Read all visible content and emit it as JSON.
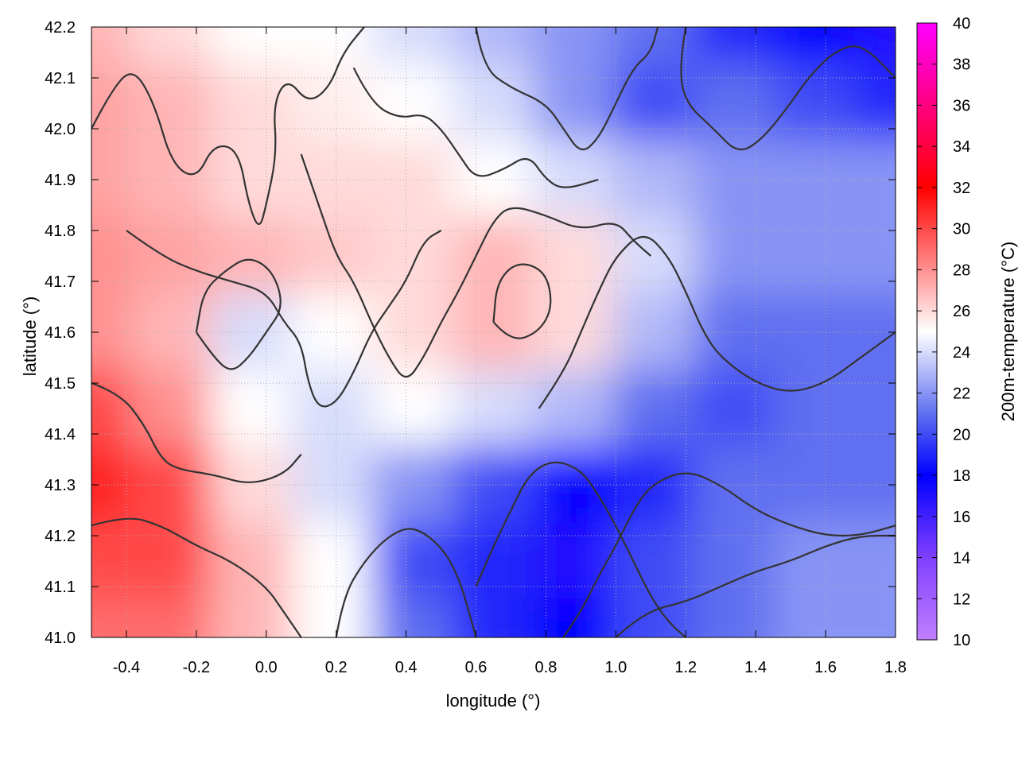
{
  "chart_data": {
    "type": "heatmap",
    "title": "",
    "xlabel": "longitude (°)",
    "ylabel": "latitude (°)",
    "colorbar_label": "200m-temperature (°C)",
    "xlim": [
      -0.5,
      1.8
    ],
    "ylim": [
      41.0,
      42.2
    ],
    "x_ticks": [
      "-0.4",
      "-0.2",
      "0.0",
      "0.2",
      "0.4",
      "0.6",
      "0.8",
      "1.0",
      "1.2",
      "1.4",
      "1.6",
      "1.8"
    ],
    "y_ticks": [
      "41.0",
      "41.1",
      "41.2",
      "41.3",
      "41.4",
      "41.5",
      "41.6",
      "41.7",
      "41.8",
      "41.9",
      "42.0",
      "42.1",
      "42.2"
    ],
    "colorbar_ticks": [
      "10",
      "12",
      "14",
      "16",
      "18",
      "20",
      "22",
      "24",
      "26",
      "28",
      "30",
      "32",
      "34",
      "36",
      "38",
      "40"
    ],
    "colorbar_range": [
      10,
      40
    ],
    "grid": true,
    "colormap": [
      {
        "value": 10,
        "color": "#c080ff"
      },
      {
        "value": 14,
        "color": "#8040ff"
      },
      {
        "value": 18,
        "color": "#0000ff"
      },
      {
        "value": 21,
        "color": "#6070f0"
      },
      {
        "value": 25,
        "color": "#ffffff"
      },
      {
        "value": 28,
        "color": "#ff9090"
      },
      {
        "value": 32,
        "color": "#ff0000"
      },
      {
        "value": 36,
        "color": "#ff0080"
      },
      {
        "value": 40,
        "color": "#ff00ff"
      }
    ],
    "temperature_grid": {
      "lon": [
        -0.5,
        -0.27,
        -0.04,
        0.19,
        0.42,
        0.65,
        0.88,
        1.11,
        1.34,
        1.57,
        1.8
      ],
      "lat": [
        42.2,
        42.05,
        41.9,
        41.75,
        41.6,
        41.45,
        41.3,
        41.15,
        41.0
      ],
      "values": [
        [
          27,
          26,
          25,
          25,
          24,
          23,
          22,
          21,
          19,
          18,
          17
        ],
        [
          27.5,
          27,
          26,
          25.5,
          25,
          24,
          22,
          20,
          21,
          20,
          19
        ],
        [
          27.5,
          27,
          26,
          26,
          26,
          25,
          24,
          23,
          22,
          22,
          22
        ],
        [
          28,
          27.5,
          27,
          26.5,
          26,
          27,
          26,
          24,
          22,
          22,
          22
        ],
        [
          28,
          27,
          24,
          25,
          26,
          27,
          26,
          23,
          21,
          21,
          21
        ],
        [
          30,
          28,
          25,
          24,
          25,
          24,
          23,
          21,
          20,
          21,
          21
        ],
        [
          31,
          30,
          26,
          24,
          22,
          20,
          18,
          19,
          21,
          21,
          21
        ],
        [
          30,
          30,
          27,
          25,
          20,
          19,
          17,
          20,
          21,
          22,
          22
        ],
        [
          29,
          29,
          27,
          25,
          21,
          19,
          18,
          20,
          21,
          22,
          22
        ]
      ]
    },
    "contour_lines": [
      [
        [
          -0.5,
          42.0
        ],
        [
          -0.44,
          42.08
        ],
        [
          -0.38,
          42.12
        ],
        [
          -0.32,
          42.05
        ],
        [
          -0.27,
          41.93
        ],
        [
          -0.2,
          41.9
        ],
        [
          -0.15,
          41.97
        ],
        [
          -0.08,
          41.96
        ],
        [
          -0.05,
          41.85
        ],
        [
          -0.02,
          41.8
        ],
        [
          0.0,
          41.85
        ],
        [
          0.03,
          41.95
        ],
        [
          0.02,
          42.05
        ],
        [
          0.06,
          42.1
        ],
        [
          0.12,
          42.05
        ],
        [
          0.18,
          42.08
        ],
        [
          0.22,
          42.15
        ],
        [
          0.28,
          42.2
        ]
      ],
      [
        [
          -0.4,
          41.8
        ],
        [
          -0.3,
          41.75
        ],
        [
          -0.2,
          41.72
        ],
        [
          -0.1,
          41.7
        ],
        [
          0.0,
          41.68
        ],
        [
          0.05,
          41.62
        ],
        [
          0.1,
          41.58
        ],
        [
          0.12,
          41.5
        ],
        [
          0.15,
          41.45
        ],
        [
          0.2,
          41.46
        ],
        [
          0.25,
          41.52
        ],
        [
          0.3,
          41.6
        ],
        [
          0.35,
          41.65
        ],
        [
          0.4,
          41.7
        ],
        [
          0.45,
          41.78
        ],
        [
          0.5,
          41.8
        ]
      ],
      [
        [
          0.1,
          41.95
        ],
        [
          0.15,
          41.85
        ],
        [
          0.2,
          41.75
        ],
        [
          0.25,
          41.7
        ],
        [
          0.3,
          41.62
        ],
        [
          0.35,
          41.55
        ],
        [
          0.4,
          41.5
        ],
        [
          0.45,
          41.55
        ],
        [
          0.5,
          41.62
        ],
        [
          0.55,
          41.68
        ],
        [
          0.6,
          41.75
        ],
        [
          0.65,
          41.82
        ],
        [
          0.7,
          41.85
        ],
        [
          0.8,
          41.83
        ],
        [
          0.9,
          41.8
        ],
        [
          1.0,
          41.82
        ],
        [
          1.05,
          41.78
        ],
        [
          1.1,
          41.75
        ]
      ],
      [
        [
          -0.5,
          41.5
        ],
        [
          -0.42,
          41.48
        ],
        [
          -0.35,
          41.42
        ],
        [
          -0.3,
          41.35
        ],
        [
          -0.25,
          41.33
        ],
        [
          -0.15,
          41.32
        ],
        [
          -0.05,
          41.3
        ],
        [
          0.05,
          41.32
        ],
        [
          0.1,
          41.36
        ]
      ],
      [
        [
          -0.5,
          41.22
        ],
        [
          -0.4,
          41.24
        ],
        [
          -0.3,
          41.22
        ],
        [
          -0.2,
          41.18
        ],
        [
          -0.1,
          41.15
        ],
        [
          0.0,
          41.1
        ],
        [
          0.05,
          41.05
        ],
        [
          0.1,
          41.0
        ]
      ],
      [
        [
          0.2,
          41.0
        ],
        [
          0.22,
          41.08
        ],
        [
          0.28,
          41.15
        ],
        [
          0.35,
          41.2
        ],
        [
          0.42,
          41.22
        ],
        [
          0.5,
          41.18
        ],
        [
          0.55,
          41.12
        ],
        [
          0.58,
          41.05
        ],
        [
          0.6,
          41.0
        ]
      ],
      [
        [
          0.6,
          41.1
        ],
        [
          0.65,
          41.18
        ],
        [
          0.7,
          41.25
        ],
        [
          0.75,
          41.32
        ],
        [
          0.82,
          41.35
        ],
        [
          0.9,
          41.33
        ],
        [
          0.95,
          41.28
        ],
        [
          1.0,
          41.22
        ],
        [
          1.05,
          41.15
        ],
        [
          1.1,
          41.08
        ],
        [
          1.15,
          41.03
        ],
        [
          1.2,
          41.0
        ]
      ],
      [
        [
          0.78,
          41.45
        ],
        [
          0.85,
          41.52
        ],
        [
          0.9,
          41.6
        ],
        [
          0.95,
          41.68
        ],
        [
          1.0,
          41.75
        ],
        [
          1.08,
          41.8
        ],
        [
          1.15,
          41.75
        ],
        [
          1.2,
          41.68
        ],
        [
          1.25,
          41.6
        ],
        [
          1.3,
          41.55
        ],
        [
          1.4,
          41.5
        ],
        [
          1.5,
          41.48
        ],
        [
          1.6,
          41.5
        ],
        [
          1.7,
          41.55
        ],
        [
          1.8,
          41.6
        ]
      ],
      [
        [
          0.85,
          41.0
        ],
        [
          0.9,
          41.05
        ],
        [
          0.95,
          41.12
        ],
        [
          1.0,
          41.18
        ],
        [
          1.05,
          41.25
        ],
        [
          1.1,
          41.3
        ],
        [
          1.2,
          41.33
        ],
        [
          1.3,
          41.3
        ],
        [
          1.4,
          41.25
        ],
        [
          1.5,
          41.22
        ],
        [
          1.6,
          41.2
        ],
        [
          1.7,
          41.2
        ],
        [
          1.8,
          41.22
        ]
      ],
      [
        [
          1.0,
          41.0
        ],
        [
          1.08,
          41.05
        ],
        [
          1.2,
          41.07
        ],
        [
          1.3,
          41.1
        ],
        [
          1.4,
          41.13
        ],
        [
          1.5,
          41.15
        ],
        [
          1.6,
          41.18
        ],
        [
          1.7,
          41.2
        ],
        [
          1.8,
          41.2
        ]
      ],
      [
        [
          1.2,
          42.2
        ],
        [
          1.18,
          42.12
        ],
        [
          1.2,
          42.05
        ],
        [
          1.28,
          42.0
        ],
        [
          1.35,
          41.95
        ],
        [
          1.42,
          41.98
        ],
        [
          1.5,
          42.05
        ],
        [
          1.55,
          42.1
        ],
        [
          1.62,
          42.15
        ],
        [
          1.7,
          42.17
        ],
        [
          1.8,
          42.1
        ]
      ],
      [
        [
          0.6,
          42.2
        ],
        [
          0.62,
          42.12
        ],
        [
          0.7,
          42.08
        ],
        [
          0.8,
          42.05
        ],
        [
          0.85,
          42.0
        ],
        [
          0.9,
          41.95
        ],
        [
          0.95,
          41.98
        ],
        [
          1.0,
          42.05
        ],
        [
          1.05,
          42.12
        ],
        [
          1.1,
          42.15
        ],
        [
          1.12,
          42.2
        ]
      ],
      [
        [
          0.25,
          42.12
        ],
        [
          0.3,
          42.05
        ],
        [
          0.38,
          42.02
        ],
        [
          0.45,
          42.03
        ],
        [
          0.5,
          42.0
        ],
        [
          0.55,
          41.95
        ],
        [
          0.6,
          41.9
        ],
        [
          0.68,
          41.92
        ],
        [
          0.75,
          41.95
        ],
        [
          0.8,
          41.9
        ],
        [
          0.85,
          41.88
        ],
        [
          0.95,
          41.9
        ]
      ],
      [
        [
          -0.2,
          41.6
        ],
        [
          -0.15,
          41.55
        ],
        [
          -0.1,
          41.52
        ],
        [
          -0.05,
          41.55
        ],
        [
          0.0,
          41.6
        ],
        [
          0.05,
          41.65
        ],
        [
          0.02,
          41.72
        ],
        [
          -0.05,
          41.75
        ],
        [
          -0.12,
          41.72
        ],
        [
          -0.18,
          41.68
        ],
        [
          -0.2,
          41.6
        ]
      ],
      [
        [
          0.65,
          41.62
        ],
        [
          0.7,
          41.58
        ],
        [
          0.78,
          41.6
        ],
        [
          0.82,
          41.65
        ],
        [
          0.8,
          41.72
        ],
        [
          0.72,
          41.74
        ],
        [
          0.66,
          41.7
        ],
        [
          0.65,
          41.62
        ]
      ]
    ]
  }
}
